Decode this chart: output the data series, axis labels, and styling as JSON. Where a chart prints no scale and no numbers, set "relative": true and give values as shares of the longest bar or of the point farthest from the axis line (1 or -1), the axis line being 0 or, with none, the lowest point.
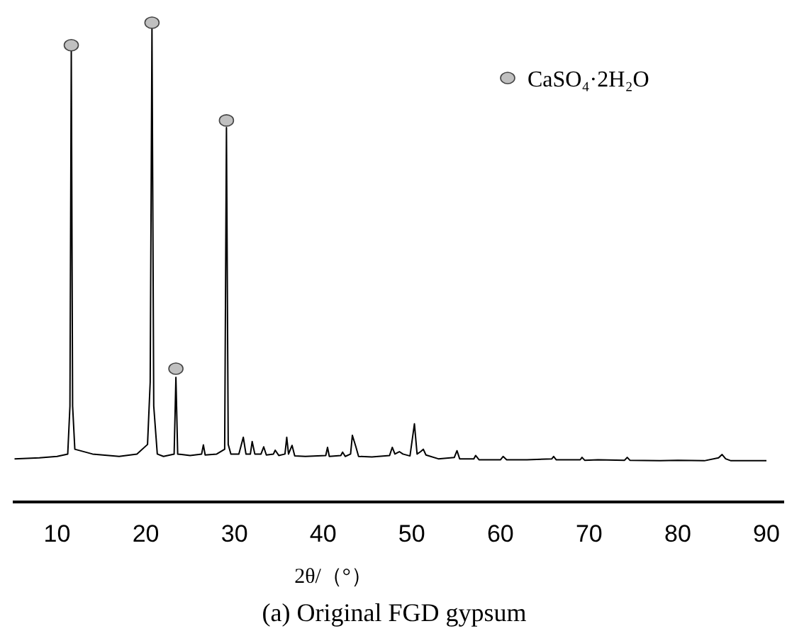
{
  "chart_data": {
    "type": "line",
    "title": "(a) Original FGD gypsum",
    "xlabel": "2θ/（°）",
    "relative": true,
    "xlim": [
      5,
      92
    ],
    "xticks": [
      10,
      20,
      30,
      40,
      50,
      60,
      70,
      80,
      90
    ],
    "legend": "top right",
    "grid": false,
    "tick_labels": "x",
    "series": [
      {
        "color": "#000000",
        "marker": "none",
        "x": [
          5.2,
          8,
          10,
          11.2,
          11.45,
          11.6,
          11.75,
          12,
          14,
          17,
          19,
          20.2,
          20.5,
          20.7,
          20.9,
          21.3,
          22,
          23.2,
          23.4,
          23.6,
          25,
          26.3,
          26.5,
          26.7,
          28,
          28.9,
          29.1,
          29.3,
          29.6,
          30.5,
          31,
          31.3,
          31.8,
          32,
          32.3,
          33,
          33.3,
          33.6,
          34.4,
          34.6,
          35,
          35.7,
          35.9,
          36.1,
          36.5,
          36.8,
          38,
          40.3,
          40.5,
          40.7,
          42,
          42.2,
          42.5,
          43.1,
          43.3,
          43.7,
          44,
          45.5,
          47.5,
          47.8,
          48.1,
          48.6,
          49,
          49.8,
          50.3,
          50.6,
          51,
          51.3,
          51.6,
          53,
          54.8,
          55.1,
          55.4,
          57,
          57.2,
          57.6,
          60,
          60.3,
          60.7,
          63,
          65.8,
          66,
          66.3,
          69,
          69.2,
          69.5,
          71,
          74,
          74.3,
          74.6,
          78,
          80,
          83,
          84.6,
          85,
          85.4,
          86,
          90
        ],
        "values": [
          0.09,
          0.092,
          0.095,
          0.1,
          0.2,
          0.941,
          0.2,
          0.11,
          0.1,
          0.095,
          0.1,
          0.12,
          0.25,
          0.988,
          0.2,
          0.1,
          0.095,
          0.1,
          0.26,
          0.1,
          0.097,
          0.1,
          0.119,
          0.098,
          0.1,
          0.11,
          0.781,
          0.12,
          0.1,
          0.1,
          0.135,
          0.1,
          0.1,
          0.126,
          0.1,
          0.1,
          0.115,
          0.098,
          0.1,
          0.108,
          0.097,
          0.1,
          0.135,
          0.1,
          0.118,
          0.096,
          0.095,
          0.097,
          0.114,
          0.095,
          0.097,
          0.104,
          0.095,
          0.1,
          0.139,
          0.115,
          0.095,
          0.094,
          0.097,
          0.114,
          0.1,
          0.105,
          0.1,
          0.096,
          0.163,
          0.1,
          0.105,
          0.11,
          0.098,
          0.09,
          0.093,
          0.107,
          0.09,
          0.09,
          0.097,
          0.088,
          0.088,
          0.095,
          0.088,
          0.088,
          0.09,
          0.095,
          0.088,
          0.088,
          0.093,
          0.087,
          0.088,
          0.087,
          0.093,
          0.087,
          0.086,
          0.087,
          0.086,
          0.092,
          0.099,
          0.09,
          0.086,
          0.086
        ]
      },
      {
        "type": "scatter",
        "name": "CaSO₄·2H₂O",
        "color": "#c0c0c0",
        "marker": "circle",
        "x": [
          11.6,
          20.7,
          23.4,
          29.1
        ],
        "values": [
          0.953,
          1,
          0.278,
          0.796
        ]
      }
    ]
  }
}
